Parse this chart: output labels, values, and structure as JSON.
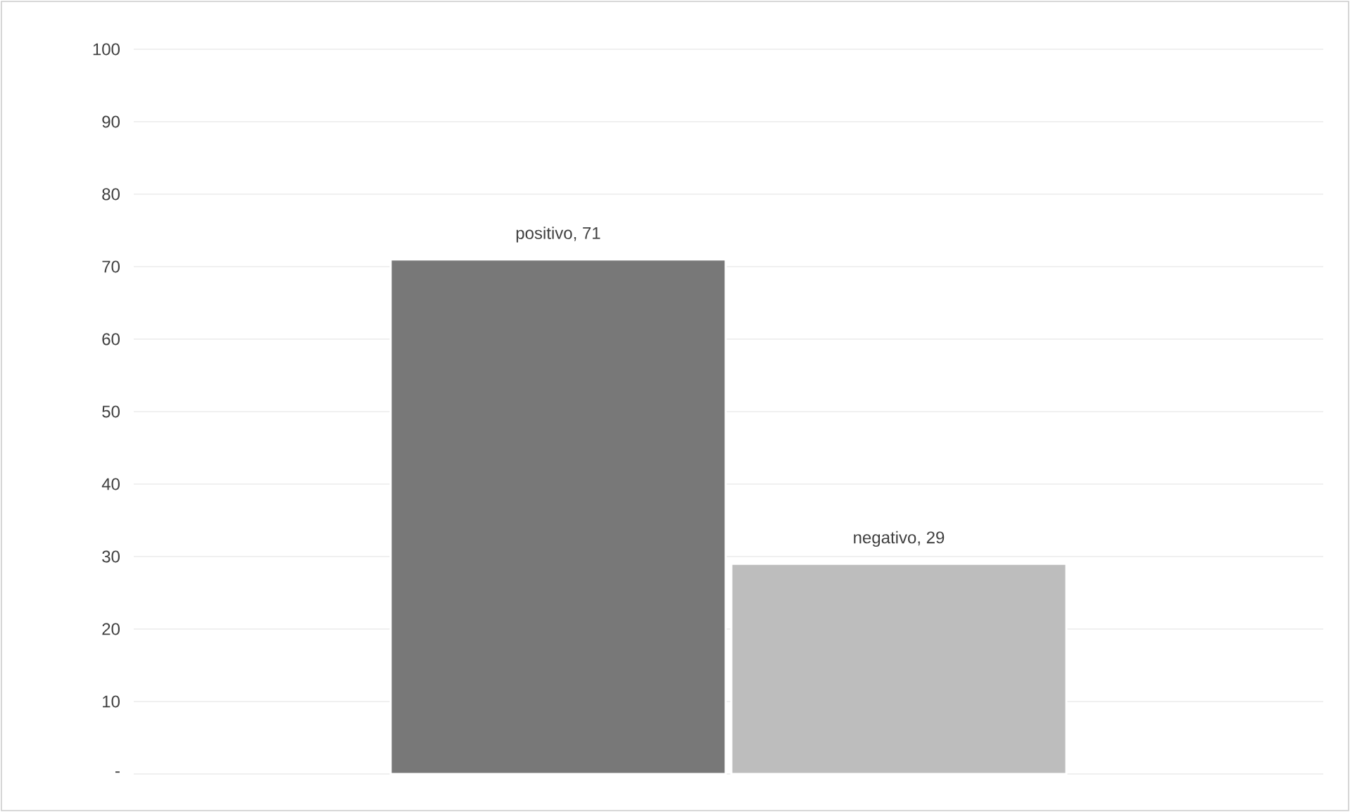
{
  "chart_data": {
    "type": "bar",
    "categories": [
      null
    ],
    "series": [
      {
        "color": "#787878",
        "values": [
          71
        ],
        "value_labels": [
          "positivo,  71"
        ]
      },
      {
        "color": "#bdbdbd",
        "values": [
          29
        ],
        "value_labels": [
          "negativo, 29"
        ]
      }
    ],
    "ylim": [
      0,
      100
    ],
    "yticks": [
      {
        "value": 0,
        "label": "-"
      },
      10,
      20,
      30,
      40,
      50,
      60,
      70,
      80,
      90,
      100
    ],
    "grid": "y"
  }
}
